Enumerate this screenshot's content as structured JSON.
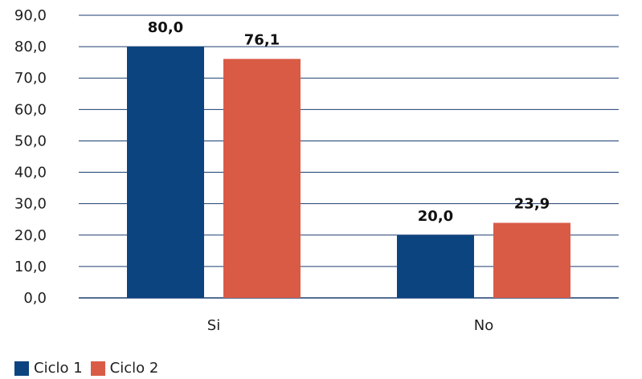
{
  "chart_data": {
    "type": "bar",
    "categories": [
      "Si",
      "No"
    ],
    "series": [
      {
        "name": "Ciclo 1",
        "values": [
          80.0,
          20.0
        ],
        "value_labels": [
          "80,0",
          "20,0"
        ],
        "color": "#0c4480"
      },
      {
        "name": "Ciclo 2",
        "values": [
          76.1,
          23.9
        ],
        "value_labels": [
          "76,1",
          "23,9"
        ],
        "color": "#d95b46"
      }
    ],
    "ylim": [
      0,
      90
    ],
    "y_ticks": [
      0,
      10,
      20,
      30,
      40,
      50,
      60,
      70,
      80,
      90
    ],
    "y_tick_labels": [
      "0,0",
      "10,0",
      "20,0",
      "30,0",
      "40,0",
      "50,0",
      "60,0",
      "70,0",
      "80,0",
      "90,0"
    ],
    "grid": true,
    "grid_color": "#1b3d6e",
    "legend_position": "bottom-left",
    "title": "",
    "xlabel": "",
    "ylabel": ""
  }
}
